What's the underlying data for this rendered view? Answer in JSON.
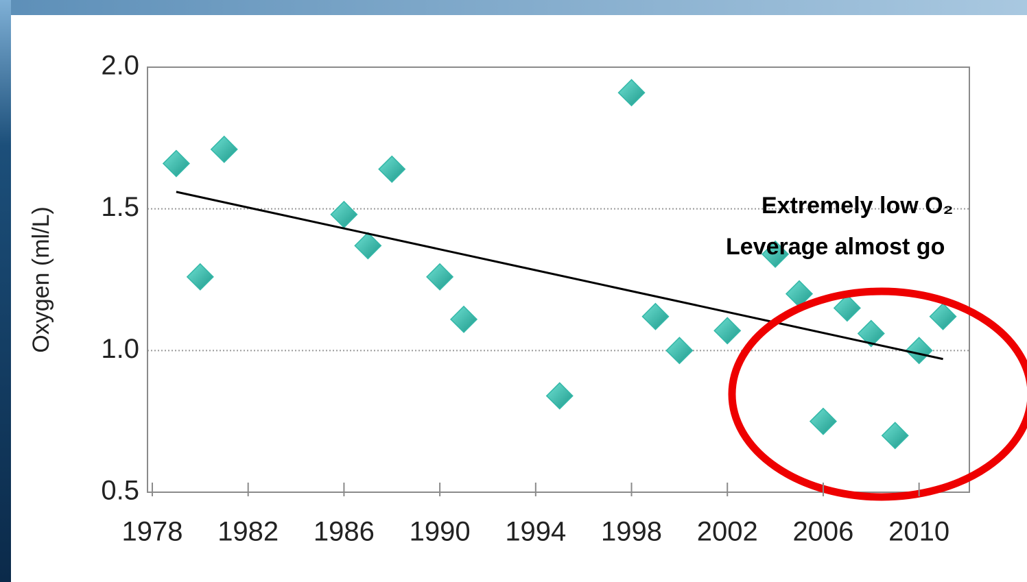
{
  "chart_data": {
    "type": "scatter",
    "ylabel": "Oxygen (ml/L)",
    "x": [
      1979,
      1980,
      1981,
      1986,
      1987,
      1988,
      1990,
      1991,
      1995,
      1998,
      1999,
      2000,
      2002,
      2004,
      2005,
      2006,
      2007,
      2008,
      2009,
      2010,
      2011
    ],
    "values": [
      1.66,
      1.26,
      1.71,
      1.48,
      1.37,
      1.64,
      1.26,
      1.11,
      0.84,
      1.91,
      1.12,
      1.0,
      1.07,
      1.34,
      1.2,
      0.75,
      1.15,
      1.06,
      0.7,
      1.0,
      1.12
    ],
    "color": "#33b8a8",
    "trend": {
      "x": [
        1979,
        2011
      ],
      "values": [
        1.56,
        0.97
      ],
      "color": "#000000"
    },
    "xlim": [
      1977.8,
      2012.1
    ],
    "ylim": [
      0.5,
      2.0
    ],
    "xticks": [
      1978,
      1982,
      1986,
      1990,
      1994,
      1998,
      2002,
      2006,
      2010
    ],
    "yticks": [
      {
        "value": 0.5,
        "label": "0.5"
      },
      {
        "value": 1.0,
        "label": "1.0"
      },
      {
        "value": 1.5,
        "label": "1.5"
      },
      {
        "value": 2.0,
        "label": "2.0"
      }
    ],
    "grid": true,
    "annotation": [
      "Extremely low O₂",
      "Leverage almost go"
    ]
  }
}
